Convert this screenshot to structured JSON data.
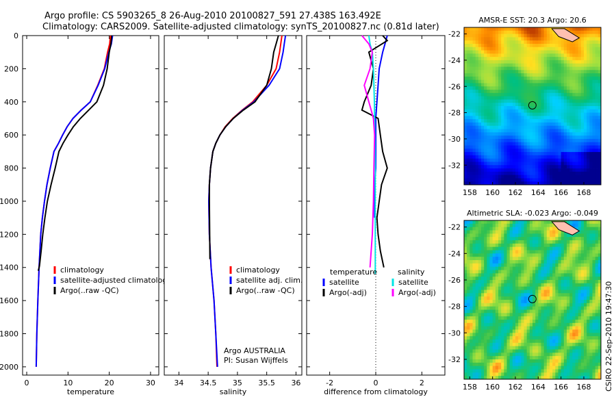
{
  "header": {
    "line1": "Argo profile: CS 5903265_8 26-Aug-2010 20100827_591 27.438S 163.492E",
    "line2": "Climatology: CARS2009. Satellite-adjusted climatology: synTS_20100827.nc (0.81d later)"
  },
  "side_label": "CSIRO 22-Sep-2010 19:47:30",
  "chart_data": [
    {
      "type": "line",
      "id": "temperature",
      "xlabel": "temperature",
      "xlim": [
        -1,
        32
      ],
      "ylim": [
        0,
        2050
      ],
      "xticks": [
        0,
        10,
        20,
        30
      ],
      "yticks": [
        0,
        200,
        400,
        600,
        800,
        1000,
        1200,
        1400,
        1600,
        1800,
        2000
      ],
      "inverted_y": true,
      "legend": [
        "climatology",
        "satellite-adjusted climatology",
        "Argo(..raw -QC)"
      ],
      "series": [
        {
          "name": "climatology",
          "color": "#ff0000",
          "x": [
            20.3,
            20.1,
            19.6,
            18.8,
            17.2,
            15.4,
            13.2,
            11.2,
            9.8,
            8.7,
            7.7,
            6.6,
            5.7,
            4.9,
            4.3,
            3.8,
            3.4,
            3.0,
            2.7,
            2.45,
            2.3
          ],
          "y": [
            0,
            50,
            100,
            200,
            300,
            400,
            450,
            500,
            550,
            600,
            650,
            700,
            800,
            900,
            1000,
            1100,
            1200,
            1400,
            1600,
            1800,
            2000
          ]
        },
        {
          "name": "satellite-adjusted climatology",
          "color": "#0000ff",
          "x": [
            20.8,
            20.5,
            19.9,
            18.9,
            17.3,
            15.4,
            13.2,
            11.2,
            9.8,
            8.7,
            7.7,
            6.6,
            5.7,
            4.9,
            4.3,
            3.8,
            3.4,
            3.0,
            2.7,
            2.45,
            2.3
          ],
          "y": [
            0,
            50,
            100,
            200,
            300,
            400,
            450,
            500,
            550,
            600,
            650,
            700,
            800,
            900,
            1000,
            1100,
            1200,
            1400,
            1600,
            1800,
            2000
          ]
        },
        {
          "name": "Argo(..raw -QC)",
          "color": "#000000",
          "x": [
            20.6,
            20.4,
            20.0,
            19.5,
            18.6,
            17.0,
            15.0,
            13.0,
            11.3,
            10.0,
            8.8,
            7.8,
            6.9,
            5.9,
            5.0,
            4.4,
            3.9,
            3.5,
            3.1,
            2.8
          ],
          "y": [
            0,
            50,
            100,
            200,
            300,
            400,
            450,
            500,
            550,
            600,
            650,
            700,
            800,
            900,
            1000,
            1100,
            1200,
            1300,
            1390,
            1420
          ]
        }
      ]
    },
    {
      "type": "line",
      "id": "salinity",
      "xlabel": "salinity",
      "xlim": [
        33.75,
        36.1
      ],
      "ylim": [
        0,
        2050
      ],
      "xticks": [
        34,
        34.5,
        35,
        35.5,
        36
      ],
      "inverted_y": true,
      "legend": [
        "climatology",
        "satellite adj. clim.",
        "Argo(..raw -QC)"
      ],
      "annotation": [
        "Argo AUSTRALIA",
        "PI: Susan Wijffels"
      ],
      "series": [
        {
          "name": "climatology",
          "color": "#ff0000",
          "x": [
            35.76,
            35.74,
            35.72,
            35.66,
            35.5,
            35.26,
            35.08,
            34.92,
            34.79,
            34.7,
            34.63,
            34.58,
            34.54,
            34.52,
            34.51,
            34.52,
            34.55,
            34.6,
            34.63,
            34.65
          ],
          "y": [
            0,
            50,
            100,
            200,
            300,
            400,
            450,
            500,
            550,
            600,
            650,
            700,
            800,
            900,
            1000,
            1200,
            1400,
            1600,
            1800,
            2000
          ]
        },
        {
          "name": "satellite adj. clim.",
          "color": "#0000ff",
          "x": [
            35.82,
            35.8,
            35.78,
            35.72,
            35.54,
            35.28,
            35.09,
            34.93,
            34.8,
            34.7,
            34.63,
            34.58,
            34.54,
            34.52,
            34.51,
            34.52,
            34.55,
            34.6,
            34.63,
            34.66
          ],
          "y": [
            0,
            50,
            100,
            200,
            300,
            400,
            450,
            500,
            550,
            600,
            650,
            700,
            800,
            900,
            1000,
            1200,
            1400,
            1600,
            1800,
            2000
          ]
        },
        {
          "name": "Argo(..raw -QC)",
          "color": "#000000",
          "x": [
            35.7,
            35.66,
            35.62,
            35.58,
            35.5,
            35.3,
            35.1,
            34.93,
            34.8,
            34.7,
            34.63,
            34.58,
            34.54,
            34.52,
            34.52,
            34.53
          ],
          "y": [
            0,
            50,
            100,
            200,
            300,
            400,
            450,
            500,
            550,
            600,
            650,
            700,
            800,
            900,
            1000,
            1350
          ]
        }
      ]
    },
    {
      "type": "line",
      "id": "difference",
      "xlabel": "difference from climatology",
      "xlim": [
        -3,
        3
      ],
      "ylim": [
        0,
        2050
      ],
      "xticks": [
        -2,
        0,
        2
      ],
      "inverted_y": true,
      "legend": {
        "temperature_header": "temperature",
        "salinity_header": "salinity",
        "temperature": [
          "satellite",
          "Argo(-adj)"
        ],
        "salinity": [
          "satellite",
          "Argo(-adj)"
        ]
      },
      "series": [
        {
          "name": "temperature satellite",
          "color": "#0000ff",
          "x": [
            0.5,
            0.4,
            0.3,
            0.15,
            0.1,
            0.05,
            0.0,
            0.0,
            0.0,
            0.0,
            -0.05,
            -0.05,
            -0.05
          ],
          "y": [
            0,
            50,
            100,
            200,
            300,
            400,
            500,
            600,
            700,
            800,
            900,
            1000,
            1100
          ]
        },
        {
          "name": "temperature Argo(-adj)",
          "color": "#000000",
          "x": [
            0.3,
            0.5,
            -0.3,
            -0.1,
            -0.2,
            -0.5,
            -0.6,
            0.1,
            0.2,
            0.3,
            0.5,
            0.25,
            0.15,
            0.05,
            0.1,
            0.2,
            0.35
          ],
          "y": [
            0,
            30,
            100,
            200,
            300,
            400,
            450,
            500,
            600,
            700,
            800,
            900,
            1000,
            1100,
            1200,
            1300,
            1400
          ]
        },
        {
          "name": "salinity satellite",
          "color": "#00e5e5",
          "x": [
            -0.3,
            -0.25,
            -0.15,
            -0.1,
            -0.08,
            -0.06,
            -0.05,
            -0.04,
            -0.03,
            -0.02,
            -0.02,
            -0.02,
            -0.02,
            -0.02,
            -0.02
          ],
          "y": [
            0,
            50,
            100,
            200,
            300,
            400,
            500,
            600,
            700,
            800,
            900,
            1000,
            1100,
            1300,
            1440
          ]
        },
        {
          "name": "salinity Argo(-adj)",
          "color": "#ff00ff",
          "x": [
            -0.6,
            -0.3,
            -0.15,
            -0.25,
            -0.5,
            -0.3,
            -0.2,
            -0.1,
            -0.05,
            -0.08,
            -0.1,
            -0.15,
            -0.2,
            -0.25
          ],
          "y": [
            0,
            50,
            100,
            200,
            300,
            400,
            450,
            500,
            600,
            800,
            1000,
            1200,
            1300,
            1400
          ]
        }
      ]
    },
    {
      "type": "heatmap",
      "id": "sst",
      "title": "AMSR-E SST: 20.3 Argo: 20.6",
      "xticks": [
        158,
        160,
        162,
        164,
        166,
        168
      ],
      "yticks": [
        -22,
        -24,
        -26,
        -28,
        -30,
        -32
      ],
      "xlim": [
        157.5,
        169.5
      ],
      "ylim": [
        -33.5,
        -21.5
      ],
      "marker": {
        "lon": 163.49,
        "lat": -27.44
      }
    },
    {
      "type": "heatmap",
      "id": "sla",
      "title": "Altimetric SLA: -0.023 Argo: -0.049",
      "xticks": [
        158,
        160,
        162,
        164,
        166,
        168
      ],
      "yticks": [
        -22,
        -24,
        -26,
        -28,
        -30,
        -32
      ],
      "xlim": [
        157.5,
        169.5
      ],
      "ylim": [
        -33.5,
        -21.5
      ],
      "marker": {
        "lon": 163.49,
        "lat": -27.44
      }
    }
  ]
}
